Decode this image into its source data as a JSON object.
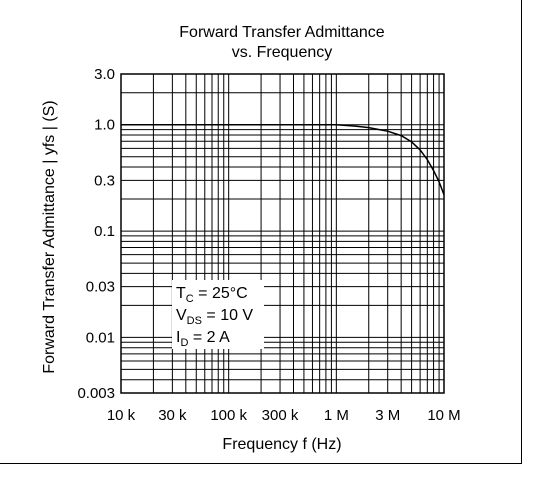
{
  "chart_data": {
    "type": "line",
    "title": "Forward Transfer Admittance",
    "subtitle": "vs. Frequency",
    "xlabel": "Frequency  f  (Hz)",
    "ylabel": "Forward Transfer Admittance   | yfs |   (S)",
    "xscale": "log",
    "yscale": "log",
    "xlim": [
      10000,
      10000000
    ],
    "ylim": [
      0.003,
      3.0
    ],
    "grid": true,
    "x_tick_labels": [
      {
        "value": 10000,
        "label": "10 k"
      },
      {
        "value": 30000,
        "label": "30 k"
      },
      {
        "value": 100000,
        "label": "100 k"
      },
      {
        "value": 300000,
        "label": "300 k"
      },
      {
        "value": 1000000,
        "label": "1 M"
      },
      {
        "value": 3000000,
        "label": "3 M"
      },
      {
        "value": 10000000,
        "label": "10 M"
      }
    ],
    "y_tick_labels": [
      {
        "value": 3.0,
        "label": "3.0"
      },
      {
        "value": 1.0,
        "label": "1.0"
      },
      {
        "value": 0.3,
        "label": "0.3"
      },
      {
        "value": 0.1,
        "label": "0.1"
      },
      {
        "value": 0.03,
        "label": "0.03"
      },
      {
        "value": 0.01,
        "label": "0.01"
      },
      {
        "value": 0.003,
        "label": "0.003"
      }
    ],
    "series": [
      {
        "x": [
          10000,
          30000,
          100000,
          300000,
          1000000,
          1500000,
          2000000,
          3000000,
          4000000,
          5000000,
          6000000,
          7000000,
          8000000,
          9000000,
          10000000
        ],
        "y": [
          1.0,
          1.0,
          1.0,
          1.0,
          1.0,
          0.97,
          0.94,
          0.87,
          0.79,
          0.69,
          0.58,
          0.47,
          0.37,
          0.29,
          0.22
        ]
      }
    ],
    "annotation": [
      {
        "main": "T",
        "sub": "C",
        "rest": " = 25°C"
      },
      {
        "main": "V",
        "sub": "DS",
        "rest": " = 10 V"
      },
      {
        "main": "I",
        "sub": "D",
        "rest": " = 2 A"
      }
    ]
  }
}
